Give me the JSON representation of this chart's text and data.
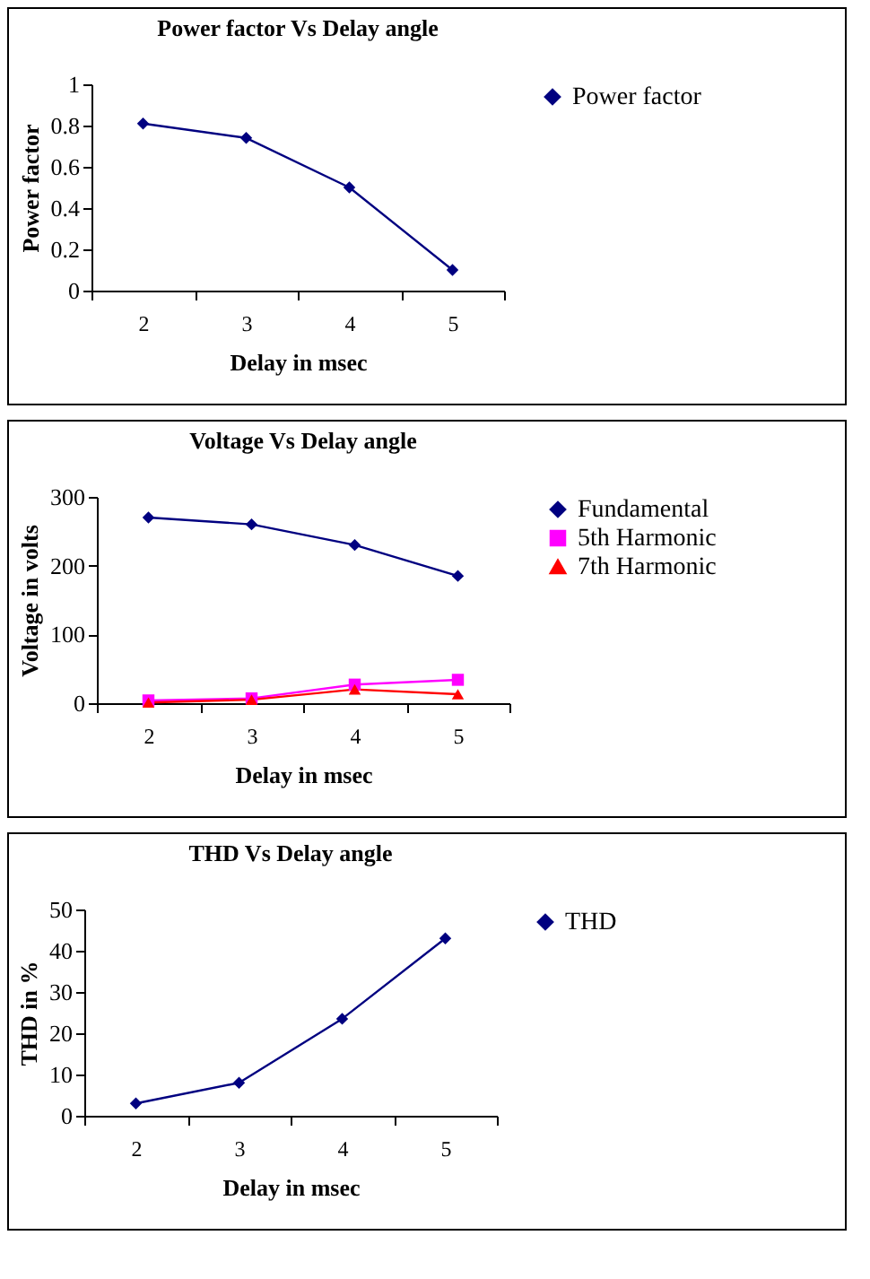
{
  "chart_data": [
    {
      "type": "line",
      "title": "Power factor Vs Delay angle",
      "xlabel": "Delay in msec",
      "ylabel": "Power factor",
      "categories": [
        "2",
        "3",
        "4",
        "5"
      ],
      "series": [
        {
          "name": "Power factor",
          "color": "#000080",
          "values": [
            0.81,
            0.74,
            0.5,
            0.1
          ]
        }
      ],
      "ylim": [
        0,
        1
      ],
      "yticks": [
        0,
        0.2,
        0.4,
        0.6,
        0.8,
        1
      ],
      "legend": "top right",
      "marker": "diamond",
      "grid": false
    },
    {
      "type": "line",
      "title": "Voltage Vs Delay angle",
      "xlabel": "Delay in msec",
      "ylabel": "Voltage in volts",
      "categories": [
        "2",
        "3",
        "4",
        "5"
      ],
      "series": [
        {
          "name": "Fundamental",
          "color": "#000080",
          "values": [
            270,
            260,
            230,
            185
          ],
          "marker": "diamond"
        },
        {
          "name": "5th Harmonic",
          "color": "#ff00ff",
          "values": [
            4,
            7,
            27,
            34
          ],
          "marker": "square"
        },
        {
          "name": "7th Harmonic",
          "color": "#ff0000",
          "values": [
            1,
            5,
            20,
            13
          ],
          "marker": "triangle"
        }
      ],
      "ylim": [
        0,
        300
      ],
      "yticks": [
        0,
        100,
        200,
        300
      ],
      "legend": "top right",
      "grid": false
    },
    {
      "type": "line",
      "title": "THD Vs Delay angle",
      "xlabel": "Delay in msec",
      "ylabel": "THD in %",
      "categories": [
        "2",
        "3",
        "4",
        "5"
      ],
      "series": [
        {
          "name": "THD",
          "color": "#000080",
          "values": [
            3,
            8,
            23.5,
            43
          ]
        }
      ],
      "ylim": [
        0,
        50
      ],
      "yticks": [
        0,
        10,
        20,
        30,
        40,
        50
      ],
      "legend": "top right",
      "marker": "diamond",
      "grid": false
    }
  ]
}
